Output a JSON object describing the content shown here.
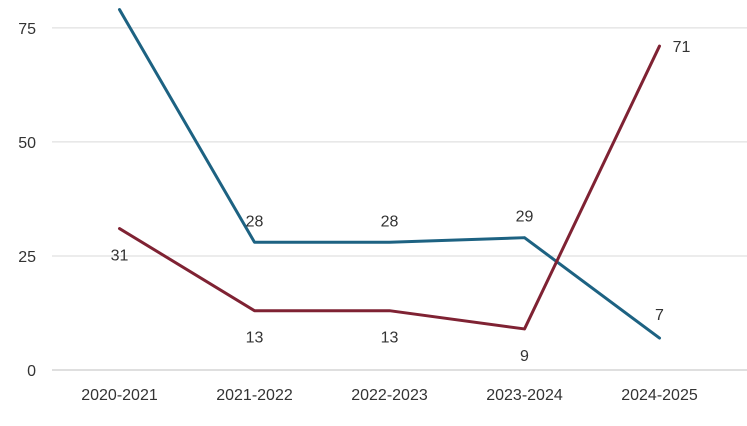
{
  "chart_data": {
    "type": "line",
    "title": "",
    "xlabel": "",
    "ylabel": "",
    "categories": [
      "2020-2021",
      "2021-2022",
      "2022-2023",
      "2023-2024",
      "2024-2025"
    ],
    "ylim": [
      0,
      80
    ],
    "yticks": [
      0,
      25,
      50,
      75
    ],
    "grid": true,
    "legend": "none",
    "series": [
      {
        "values": [
          79,
          28,
          28,
          29,
          7
        ],
        "color": "#1d6282",
        "label_position": "above"
      },
      {
        "values": [
          31,
          13,
          13,
          9,
          71
        ],
        "color": "#7f2233",
        "label_position": "below"
      }
    ]
  }
}
